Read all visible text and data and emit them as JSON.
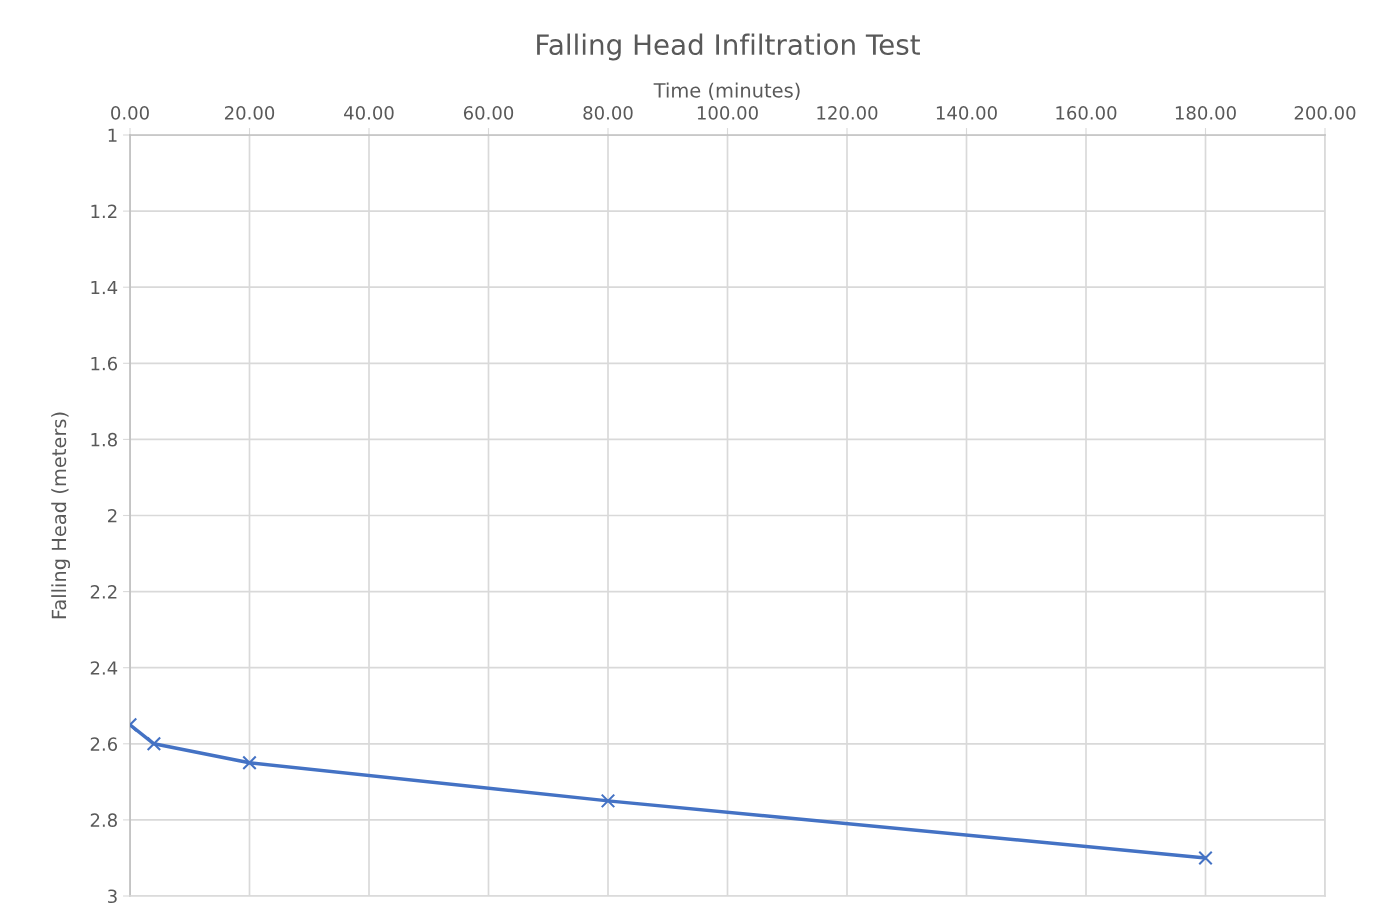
{
  "chart_data": {
    "type": "line",
    "title": "Falling Head Infiltration Test",
    "xlabel": "Time (minutes)",
    "ylabel": "Falling Head (meters)",
    "x": [
      0,
      4,
      20,
      80,
      180
    ],
    "series": [
      {
        "color": "#4472c4",
        "values": [
          2.55,
          2.6,
          2.65,
          2.75,
          2.9
        ]
      }
    ],
    "xlim": [
      0,
      200
    ],
    "xticks": [
      {
        "value": 0,
        "label": "0.00"
      },
      {
        "value": 20,
        "label": "20.00"
      },
      {
        "value": 40,
        "label": "40.00"
      },
      {
        "value": 60,
        "label": "60.00"
      },
      {
        "value": 80,
        "label": "80.00"
      },
      {
        "value": 100,
        "label": "100.00"
      },
      {
        "value": 120,
        "label": "120.00"
      },
      {
        "value": 140,
        "label": "140.00"
      },
      {
        "value": 160,
        "label": "160.00"
      },
      {
        "value": 180,
        "label": "180.00"
      },
      {
        "value": 200,
        "label": "200.00"
      }
    ],
    "ylim": [
      3,
      1
    ],
    "yticks": [
      1,
      1.2,
      1.4,
      1.6,
      1.8,
      2,
      2.2,
      2.4,
      2.6,
      2.8,
      3
    ],
    "grid": true,
    "marker": "cross",
    "line_style": "solid"
  }
}
